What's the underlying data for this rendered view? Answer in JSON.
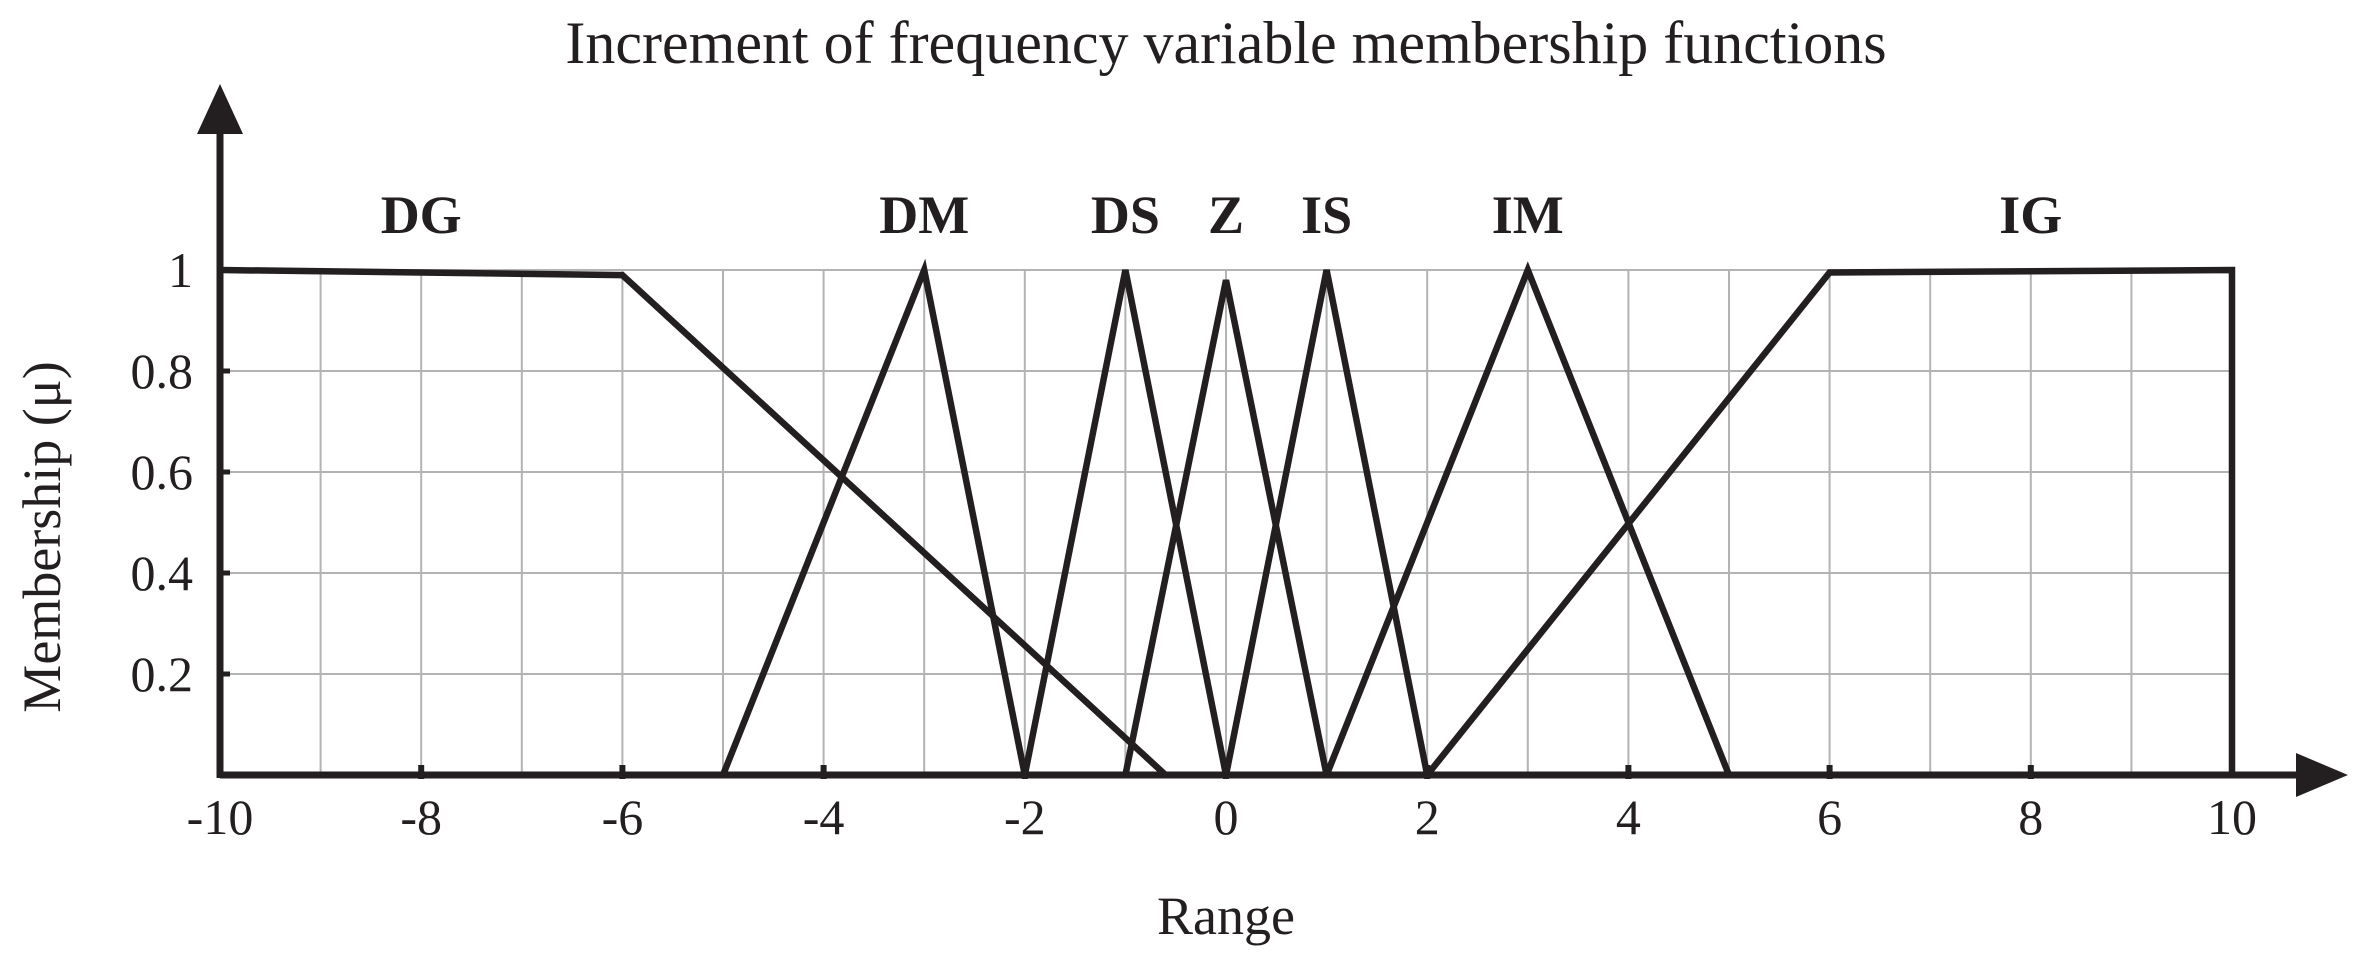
{
  "chart_data": {
    "type": "line",
    "title": "Increment of frequency variable membership functions",
    "xlabel": "Range",
    "ylabel": "Membership (μ)",
    "xlim": [
      -10,
      10
    ],
    "ylim": [
      0,
      1
    ],
    "x_ticks": [
      "-10",
      "-8",
      "-6",
      "-4",
      "-2",
      "0",
      "2",
      "4",
      "6",
      "8",
      "10"
    ],
    "y_ticks": [
      "0.2",
      "0.4",
      "0.6",
      "0.8",
      "1"
    ],
    "grid": true,
    "legend": "none",
    "series": [
      {
        "name": "DG",
        "x": [
          -10,
          -6,
          -0.6
        ],
        "y": [
          1,
          0.99,
          0
        ]
      },
      {
        "name": "DM",
        "x": [
          -5,
          -3,
          -2
        ],
        "y": [
          0,
          1,
          0
        ]
      },
      {
        "name": "DS",
        "x": [
          -2,
          -1,
          0
        ],
        "y": [
          0,
          1,
          0
        ]
      },
      {
        "name": "Z",
        "x": [
          -1,
          0,
          1
        ],
        "y": [
          0,
          0.98,
          0
        ]
      },
      {
        "name": "IS",
        "x": [
          0,
          1,
          2
        ],
        "y": [
          0,
          1,
          0
        ]
      },
      {
        "name": "IM",
        "x": [
          1,
          3,
          5
        ],
        "y": [
          0,
          1,
          0
        ]
      },
      {
        "name": "IG",
        "x": [
          2,
          6,
          10,
          10
        ],
        "y": [
          0,
          0.995,
          1,
          0
        ]
      }
    ],
    "label_positions_x": {
      "DG": -8,
      "DM": -3,
      "DS": -1,
      "Z": 0,
      "IS": 1,
      "IM": 3,
      "IG": 8
    }
  }
}
